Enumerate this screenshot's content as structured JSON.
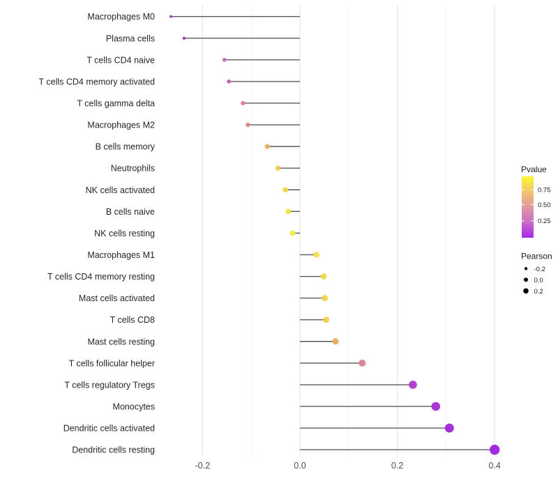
{
  "chart_data": {
    "type": "lollipop",
    "title": "",
    "xlabel": "",
    "ylabel": "",
    "description": "Horizontal lollipop chart of Pearson correlation per immune cell type; dot color encodes Pvalue, dot size encodes Pearson",
    "x_axis": {
      "tick_labels": [
        "-0.2",
        "0.0",
        "0.2",
        "0.4"
      ],
      "tick_values": [
        -0.2,
        0.0,
        0.2,
        0.4
      ],
      "gridline_values": [
        -0.2,
        -0.1,
        0.0,
        0.1,
        0.2,
        0.3,
        0.4
      ],
      "range": [
        -0.29,
        0.43
      ],
      "grid": "on"
    },
    "points": [
      {
        "label": "Macrophages M0",
        "pearson": -0.265,
        "color": "#9C35CC"
      },
      {
        "label": "Plasma cells",
        "pearson": -0.238,
        "color": "#9530CB"
      },
      {
        "label": "T cells CD4 naive",
        "pearson": -0.155,
        "color": "#C465B4"
      },
      {
        "label": "T cells CD4 memory activated",
        "pearson": -0.146,
        "color": "#C05FB0"
      },
      {
        "label": "T cells gamma delta",
        "pearson": -0.117,
        "color": "#D9838A"
      },
      {
        "label": "Macrophages M2",
        "pearson": -0.107,
        "color": "#DB8A82"
      },
      {
        "label": "B cells memory",
        "pearson": -0.067,
        "color": "#E6B160"
      },
      {
        "label": "Neutrophils",
        "pearson": -0.045,
        "color": "#EDC952"
      },
      {
        "label": "NK cells activated",
        "pearson": -0.03,
        "color": "#F1DA48"
      },
      {
        "label": "B cells naive",
        "pearson": -0.024,
        "color": "#F3DF45"
      },
      {
        "label": "NK cells resting",
        "pearson": -0.015,
        "color": "#F6E93C"
      },
      {
        "label": "Macrophages M1",
        "pearson": 0.034,
        "color": "#F4E046"
      },
      {
        "label": "T cells CD4 memory resting",
        "pearson": 0.049,
        "color": "#F1D74B"
      },
      {
        "label": "Mast cells activated",
        "pearson": 0.051,
        "color": "#F0D44D"
      },
      {
        "label": "T cells CD8",
        "pearson": 0.054,
        "color": "#EFD04F"
      },
      {
        "label": "Mast cells resting",
        "pearson": 0.073,
        "color": "#E6AC62"
      },
      {
        "label": "T cells follicular helper",
        "pearson": 0.128,
        "color": "#DB8494"
      },
      {
        "label": "T cells regulatory  Tregs",
        "pearson": 0.232,
        "color": "#AC3ACF"
      },
      {
        "label": "Monocytes",
        "pearson": 0.279,
        "color": "#A52DD6"
      },
      {
        "label": "Dendritic cells activated",
        "pearson": 0.307,
        "color": "#A026DB"
      },
      {
        "label": "Dendritic cells resting",
        "pearson": 0.4,
        "color": "#9C1FE2"
      }
    ],
    "legend": {
      "position": "right",
      "pvalue": {
        "title": "Pvalue",
        "tick_labels": [
          "0.75",
          "0.50",
          "0.25"
        ],
        "tick_fractions_from_top": [
          0.216,
          0.458,
          0.724
        ],
        "gradient_top_to_bottom": [
          "#FCFA2D",
          "#F2C46E",
          "#DE9A9E",
          "#C76BC7",
          "#A826EC"
        ]
      },
      "pearson": {
        "title": "Pearson",
        "items": [
          {
            "label": "-0.2",
            "radius": 2.2
          },
          {
            "label": "0.0",
            "radius": 3.0
          },
          {
            "label": "0.2",
            "radius": 3.8
          }
        ]
      }
    },
    "colors": {
      "stem": "#5A5A5A",
      "grid_major": "#E3E3E3",
      "grid_minor": "#F2F2F2",
      "category_text": "#262626",
      "axis_text": "#4D4D4D",
      "legend_dot": "#000000",
      "background": "#FFFFFF"
    }
  }
}
